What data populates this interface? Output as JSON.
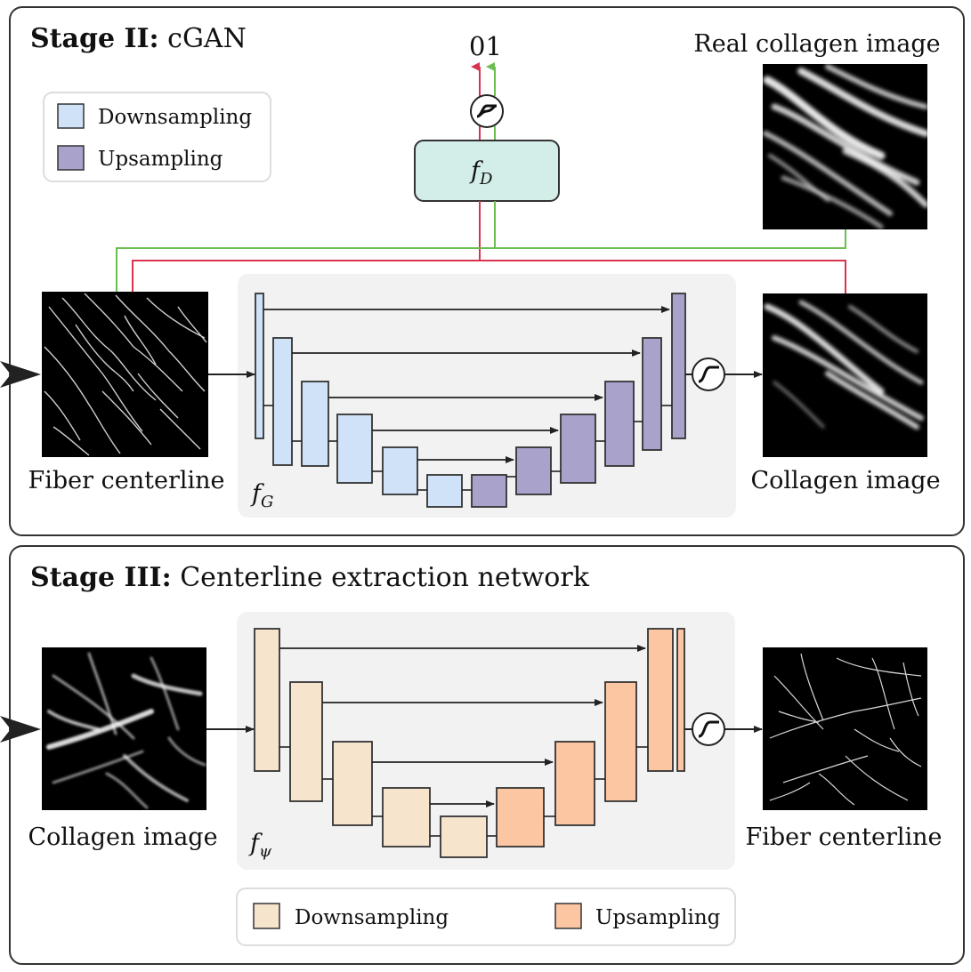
{
  "stage2": {
    "title_bold": "Stage II:",
    "title_rest": " cGAN",
    "legend": {
      "down_label": "Downsampling",
      "up_label": "Upsampling"
    },
    "disc_label": "f",
    "disc_sub": "D",
    "disc_outputs": "01",
    "real_image_label": "Real collagen image",
    "input_label": "Fiber centerline",
    "output_label": "Collagen image",
    "gen_label": "f",
    "gen_sub": "G"
  },
  "stage3": {
    "title_bold": "Stage III:",
    "title_rest": " Centerline extraction network",
    "input_label": "Collagen image",
    "output_label": "Fiber centerline",
    "net_label": "f",
    "net_sub": "ψ",
    "legend": {
      "down_label": "Downsampling",
      "up_label": "Upsampling"
    }
  },
  "colors": {
    "gan_down": "#cfe2f7",
    "gan_up": "#a9a3cc",
    "disc_fill": "#d3ede9",
    "ext_down": "#f7e4cd",
    "ext_up": "#fcc6a3",
    "fake_line": "#d8344f",
    "real_line": "#6cbd4f",
    "panel_bg": "#f2f2f2"
  }
}
